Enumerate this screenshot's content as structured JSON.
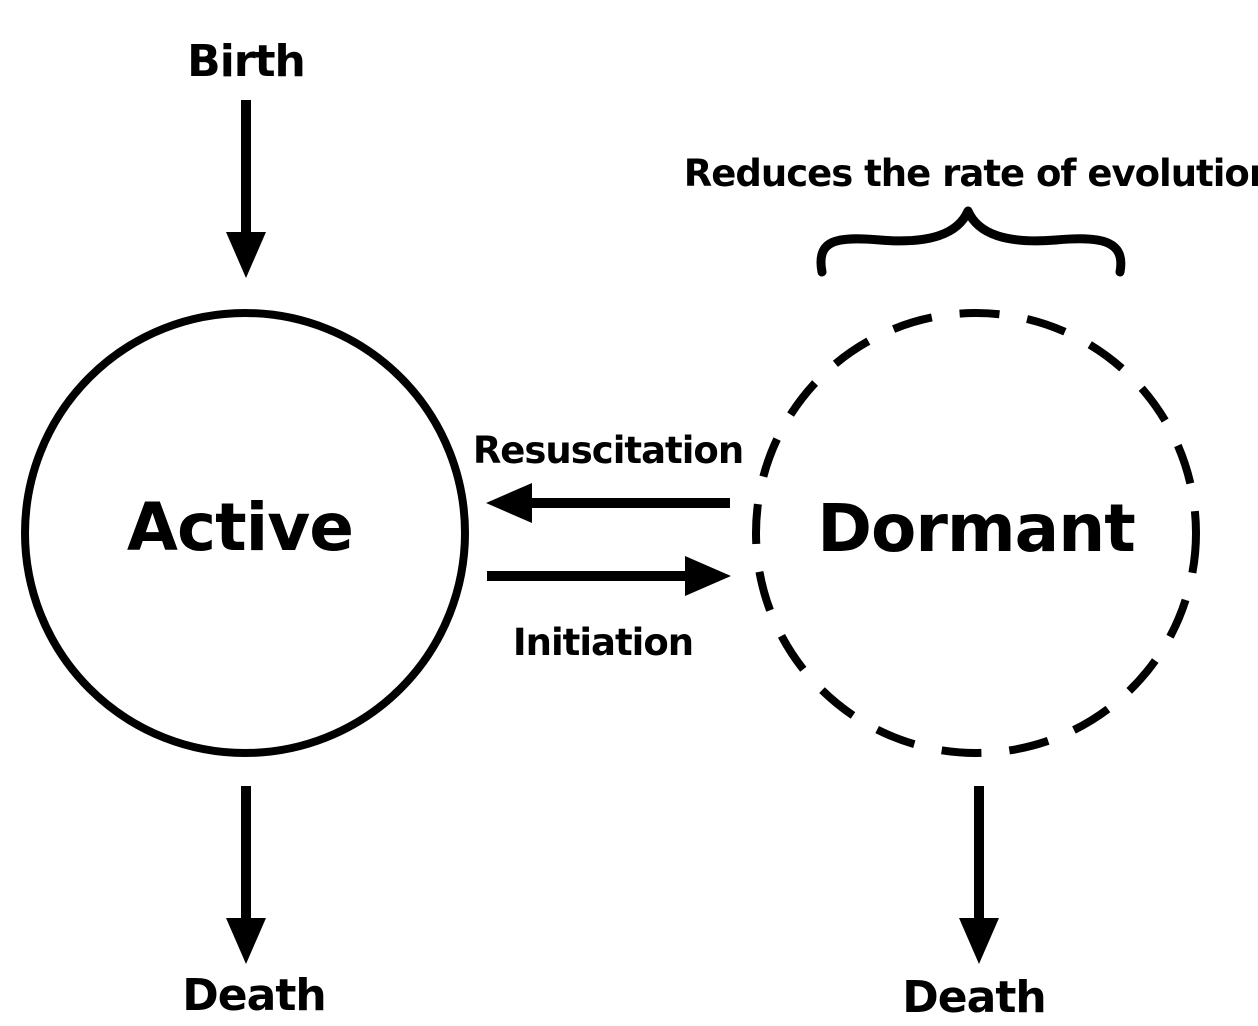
{
  "diagram": {
    "nodes": {
      "active": {
        "label": "Active"
      },
      "dormant": {
        "label": "Dormant"
      }
    },
    "labels": {
      "birth": "Birth",
      "death_active": "Death",
      "death_dormant": "Death",
      "resuscitation": "Resuscitation",
      "initiation": "Initiation",
      "brace_note": "Reduces the rate of evolution"
    },
    "colors": {
      "stroke": "#000000",
      "background": "#ffffff"
    }
  }
}
